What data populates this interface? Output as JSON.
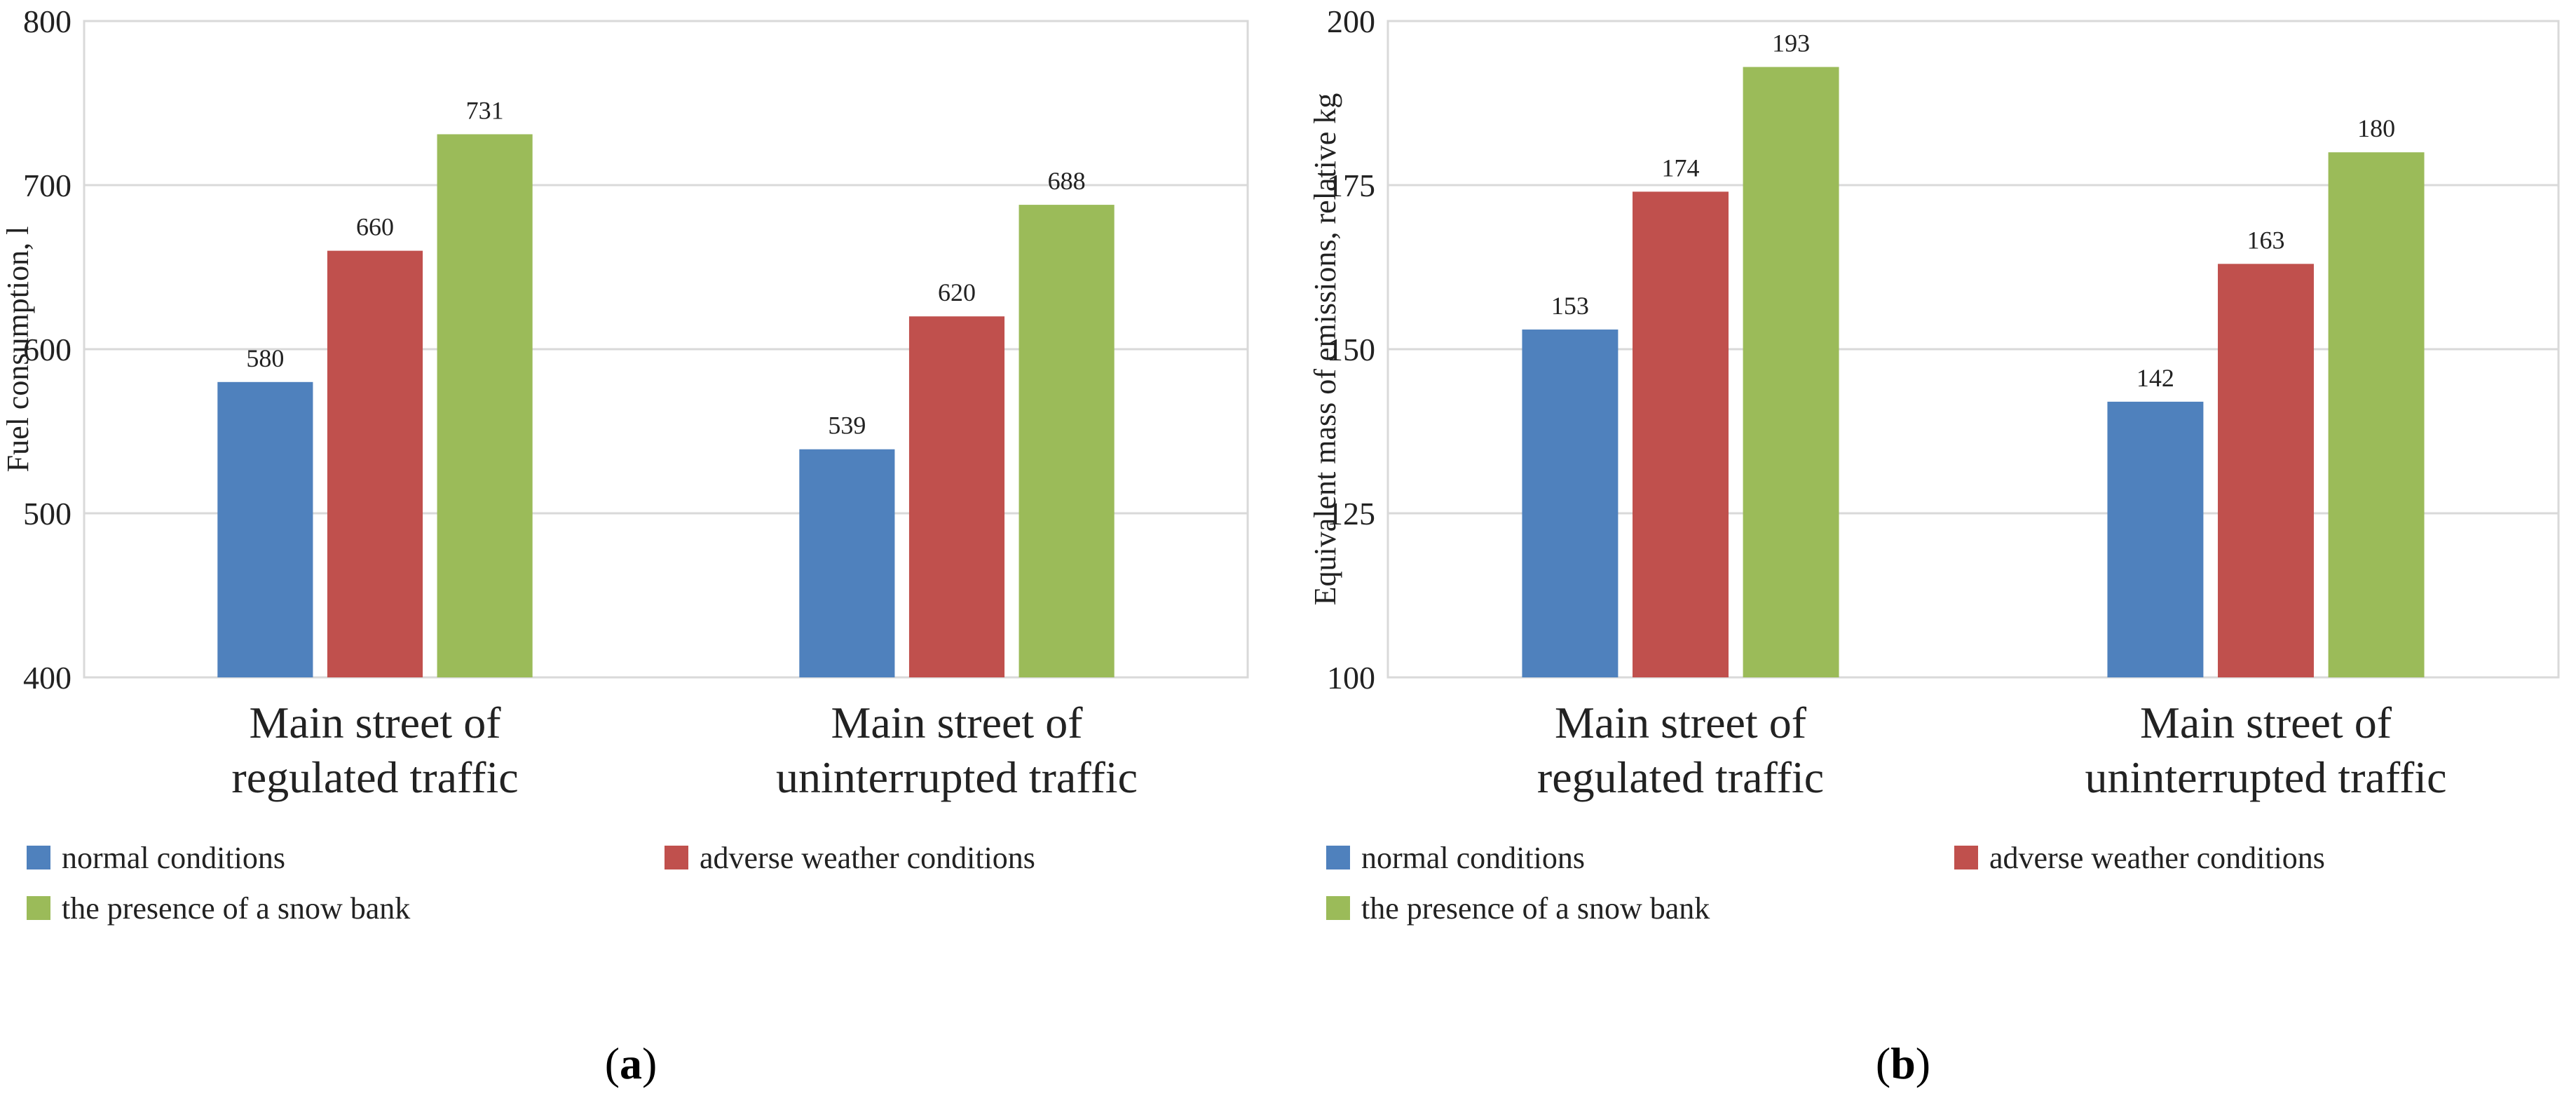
{
  "chart_data": [
    {
      "type": "bar",
      "panel": "(a)",
      "panel_letter": "a",
      "categories": [
        [
          "Main street of",
          "regulated traffic"
        ],
        [
          "Main street of",
          "uninterrupted traffic"
        ]
      ],
      "series": [
        {
          "name": "normal conditions",
          "color": "#4F81BD",
          "values": [
            580,
            539
          ]
        },
        {
          "name": "adverse weather conditions",
          "color": "#C0504D",
          "values": [
            660,
            620
          ]
        },
        {
          "name": "the presence of a snow bank",
          "color": "#9BBB59",
          "values": [
            731,
            688
          ]
        }
      ],
      "ylabel": "Fuel consumption,  l",
      "xlabel": "",
      "ylim": [
        400,
        800
      ],
      "yticks": [
        400,
        500,
        600,
        700,
        800
      ],
      "grid": true,
      "legend": "bottom"
    },
    {
      "type": "bar",
      "panel": "(b)",
      "panel_letter": "b",
      "categories": [
        [
          "Main street of",
          "regulated traffic"
        ],
        [
          "Main street of",
          "uninterrupted traffic"
        ]
      ],
      "series": [
        {
          "name": "normal conditions",
          "color": "#4F81BD",
          "values": [
            153,
            142
          ]
        },
        {
          "name": "adverse weather conditions",
          "color": "#C0504D",
          "values": [
            174,
            163
          ]
        },
        {
          "name": "the presence of a snow bank",
          "color": "#9BBB59",
          "values": [
            193,
            180
          ]
        }
      ],
      "ylabel": "Equivalent  mass of emissions,  relative kg",
      "xlabel": "",
      "ylim": [
        100,
        200
      ],
      "yticks": [
        100,
        125,
        150,
        175,
        200
      ],
      "grid": true,
      "legend": "bottom"
    }
  ]
}
